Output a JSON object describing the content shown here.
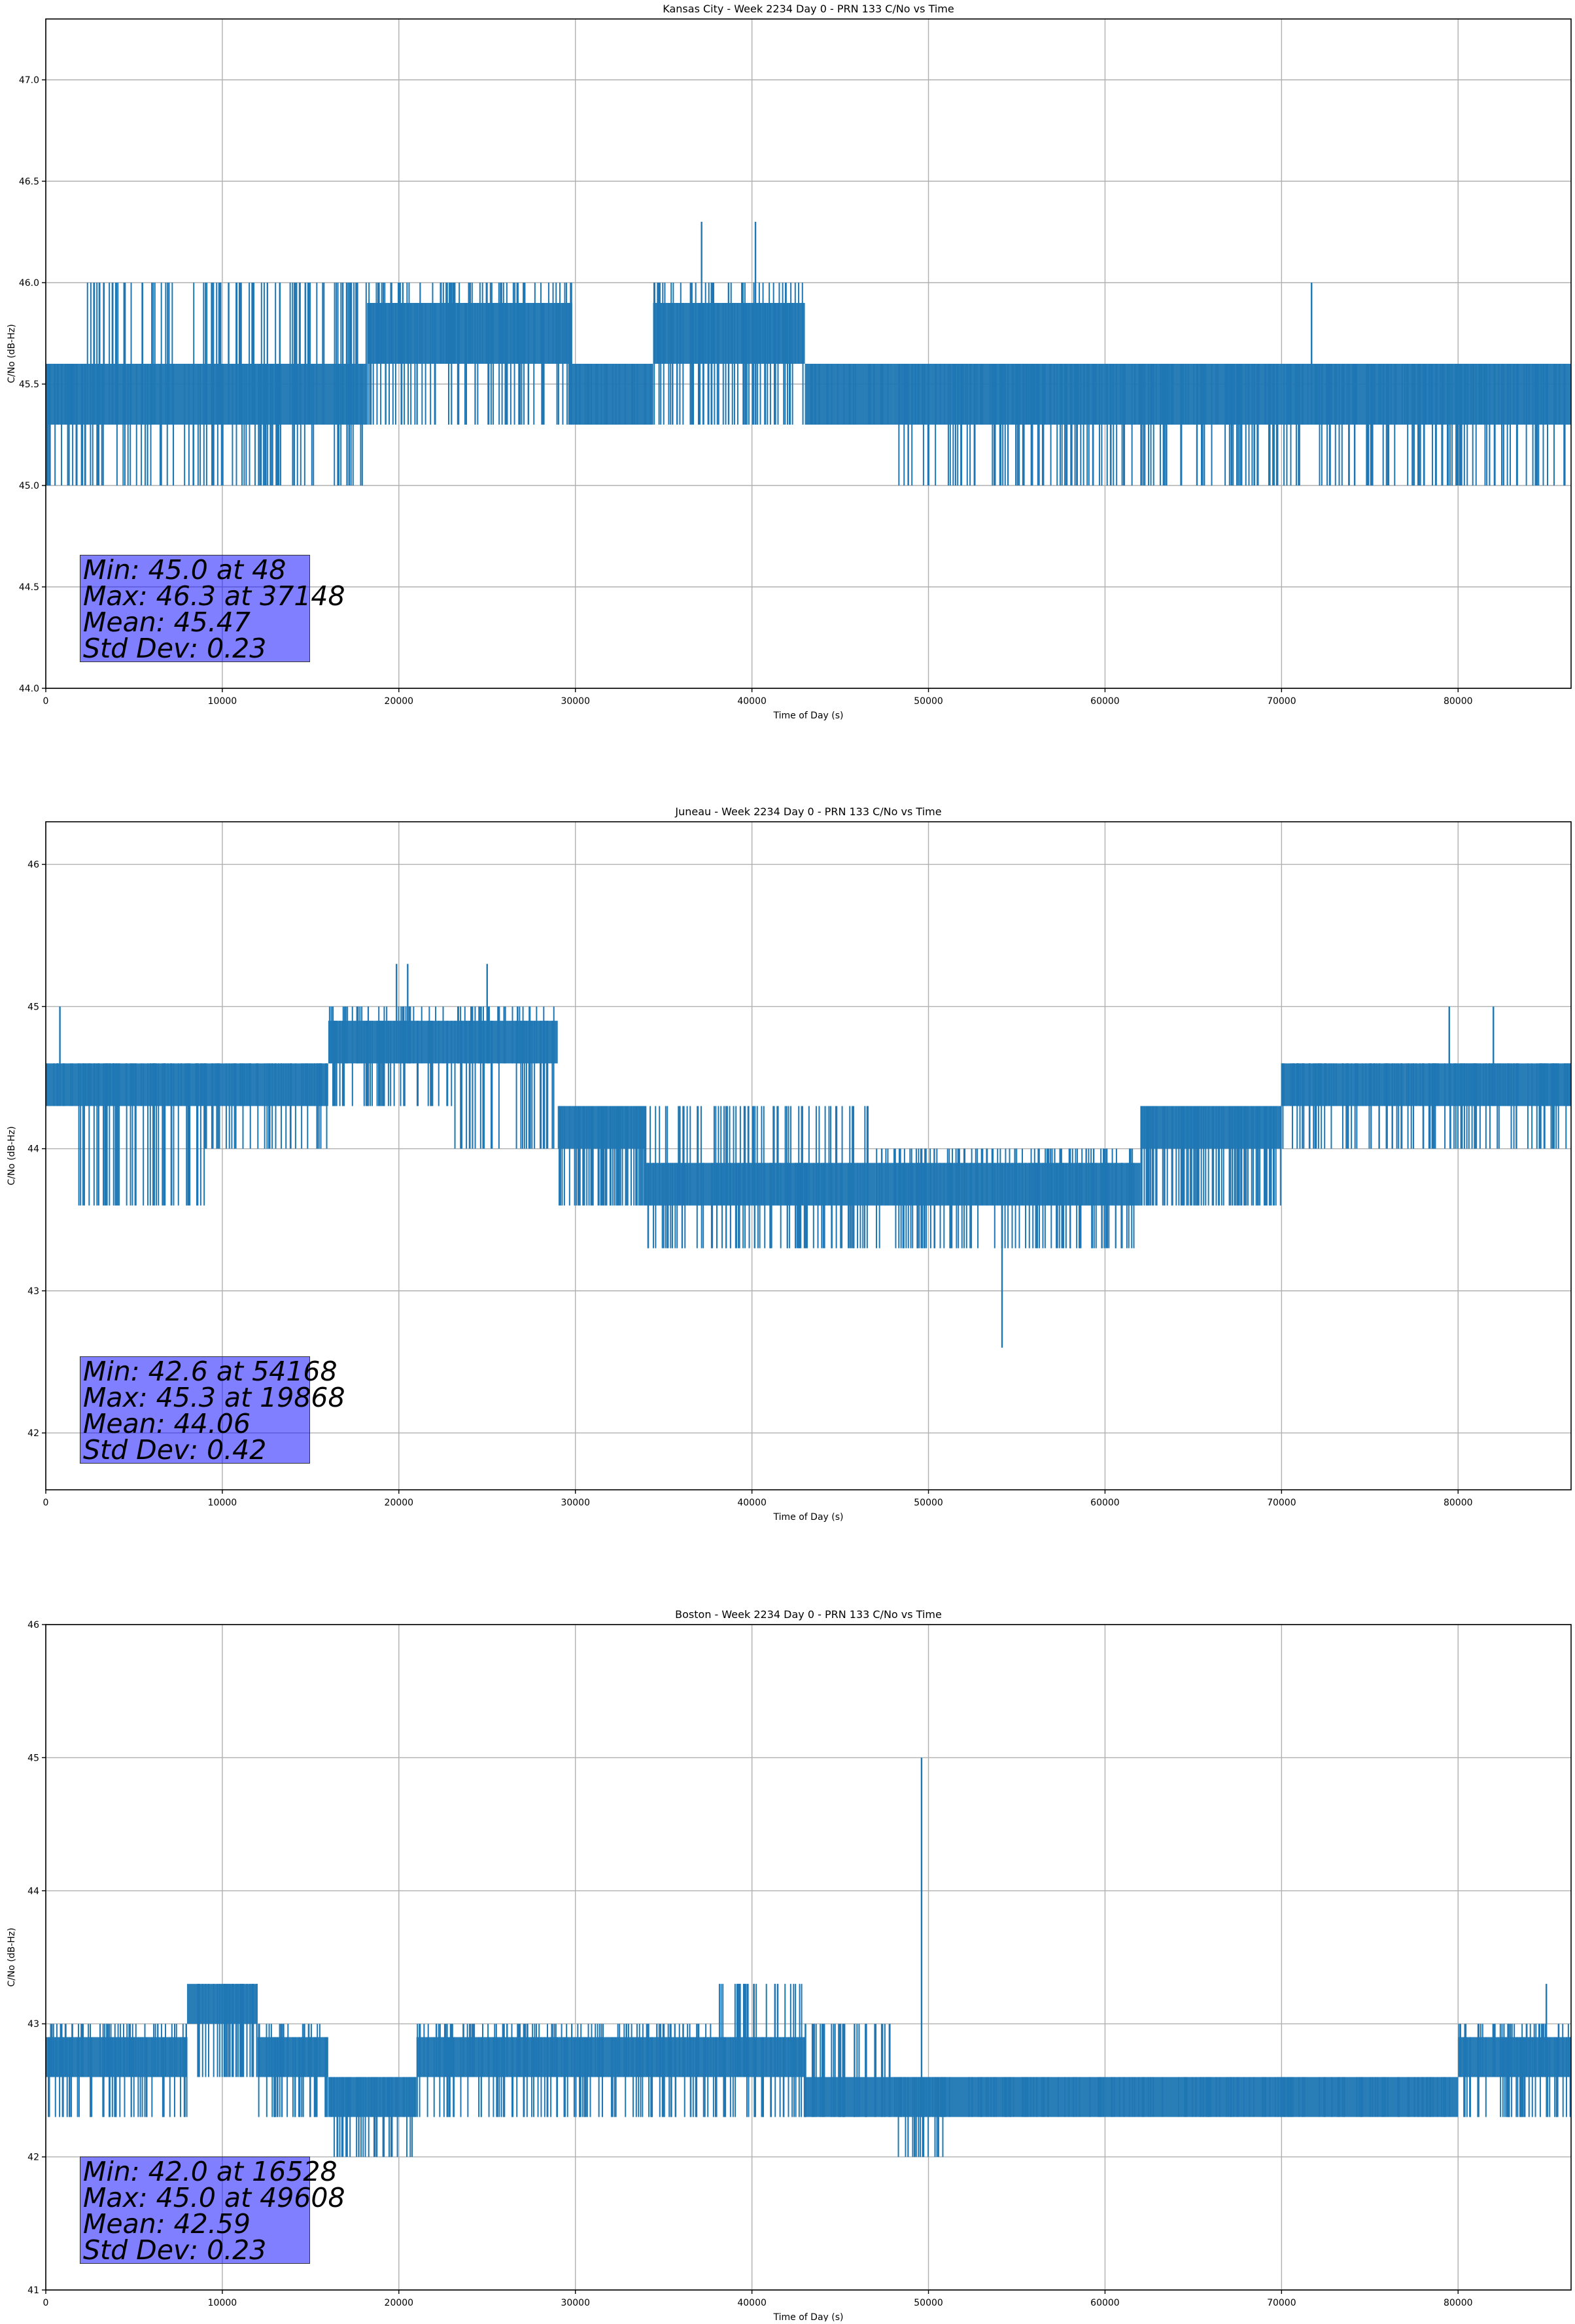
{
  "chart_data": [
    {
      "type": "line",
      "title": "Kansas City - Week 2234 Day 0 - PRN 133 C/No vs Time",
      "xlabel": "Time of Day (s)",
      "ylabel": "C/No (dB-Hz)",
      "xlim": [
        0,
        86400
      ],
      "ylim": [
        44.0,
        47.3
      ],
      "xticks": [
        0,
        10000,
        20000,
        30000,
        40000,
        50000,
        60000,
        70000,
        80000
      ],
      "yticks": [
        44.0,
        44.5,
        45.0,
        45.5,
        46.0,
        46.5,
        47.0
      ],
      "ytick_labels": [
        "44.0",
        "44.5",
        "45.0",
        "45.5",
        "46.0",
        "46.5",
        "47.0"
      ],
      "grid": true,
      "color": "#1f77b4",
      "band_segments": [
        {
          "x": [
            0,
            2000
          ],
          "base": 45.3,
          "lo": 45.0,
          "hi": 45.6
        },
        {
          "x": [
            2000,
            18200
          ],
          "base": 45.3,
          "lo": 45.0,
          "hi": 46.0
        },
        {
          "x": [
            18200,
            29800
          ],
          "base": 45.6,
          "lo": 45.3,
          "hi": 46.0
        },
        {
          "x": [
            29800,
            34400
          ],
          "base": 45.3,
          "lo": 45.3,
          "hi": 45.6
        },
        {
          "x": [
            34400,
            43000
          ],
          "base": 45.6,
          "lo": 45.3,
          "hi": 46.0
        },
        {
          "x": [
            43000,
            48000
          ],
          "base": 45.3,
          "lo": 45.3,
          "hi": 45.6
        },
        {
          "x": [
            48000,
            86400
          ],
          "base": 45.3,
          "lo": 45.0,
          "hi": 45.6
        }
      ],
      "spikes": [
        {
          "x": 48,
          "y": 45.0
        },
        {
          "x": 37148,
          "y": 46.3
        },
        {
          "x": 40200,
          "y": 46.3
        },
        {
          "x": 71700,
          "y": 46.0
        }
      ],
      "stats": [
        "Min: 45.0 at 48",
        "Max: 46.3 at 37148",
        "Mean: 45.47",
        "Std Dev: 0.23"
      ]
    },
    {
      "type": "line",
      "title": "Juneau - Week 2234 Day 0 - PRN 133 C/No vs Time",
      "xlabel": "Time of Day (s)",
      "ylabel": "C/No (dB-Hz)",
      "xlim": [
        0,
        86400
      ],
      "ylim": [
        41.6,
        46.3
      ],
      "xticks": [
        0,
        10000,
        20000,
        30000,
        40000,
        50000,
        60000,
        70000,
        80000
      ],
      "yticks": [
        42,
        43,
        44,
        45,
        46
      ],
      "ytick_labels": [
        "42",
        "43",
        "44",
        "45",
        "46"
      ],
      "grid": true,
      "color": "#1f77b4",
      "band_segments": [
        {
          "x": [
            0,
            1800
          ],
          "base": 44.3,
          "lo": 44.3,
          "hi": 44.6
        },
        {
          "x": [
            1800,
            9000
          ],
          "base": 44.3,
          "lo": 43.6,
          "hi": 44.6
        },
        {
          "x": [
            9000,
            16000
          ],
          "base": 44.3,
          "lo": 44.0,
          "hi": 44.6
        },
        {
          "x": [
            16000,
            23000
          ],
          "base": 44.6,
          "lo": 44.3,
          "hi": 45.0
        },
        {
          "x": [
            23000,
            29000
          ],
          "base": 44.6,
          "lo": 44.0,
          "hi": 45.0
        },
        {
          "x": [
            29000,
            34000
          ],
          "base": 44.0,
          "lo": 43.6,
          "hi": 44.3
        },
        {
          "x": [
            34000,
            47000
          ],
          "base": 43.6,
          "lo": 43.3,
          "hi": 44.3
        },
        {
          "x": [
            47000,
            62000
          ],
          "base": 43.6,
          "lo": 43.3,
          "hi": 44.0
        },
        {
          "x": [
            62000,
            70000
          ],
          "base": 44.0,
          "lo": 43.6,
          "hi": 44.3
        },
        {
          "x": [
            70000,
            77000
          ],
          "base": 44.3,
          "lo": 44.0,
          "hi": 44.6
        },
        {
          "x": [
            77000,
            86400
          ],
          "base": 44.3,
          "lo": 44.0,
          "hi": 44.6
        }
      ],
      "spikes": [
        {
          "x": 800,
          "y": 45.0
        },
        {
          "x": 19868,
          "y": 45.3
        },
        {
          "x": 20500,
          "y": 45.3
        },
        {
          "x": 25000,
          "y": 45.3
        },
        {
          "x": 54168,
          "y": 42.6
        },
        {
          "x": 79500,
          "y": 45.0
        },
        {
          "x": 82000,
          "y": 45.0
        }
      ],
      "stats": [
        "Min: 42.6 at 54168",
        "Max: 45.3 at 19868",
        "Mean: 44.06",
        "Std Dev: 0.42"
      ]
    },
    {
      "type": "line",
      "title": "Boston - Week 2234 Day 0 - PRN 133 C/No vs Time",
      "xlabel": "Time of Day (s)",
      "ylabel": "C/No (dB-Hz)",
      "xlim": [
        0,
        86400
      ],
      "ylim": [
        41.0,
        46.0
      ],
      "xticks": [
        0,
        10000,
        20000,
        30000,
        40000,
        50000,
        60000,
        70000,
        80000
      ],
      "yticks": [
        41,
        42,
        43,
        44,
        45,
        46
      ],
      "ytick_labels": [
        "41",
        "42",
        "43",
        "44",
        "45",
        "46"
      ],
      "grid": true,
      "color": "#1f77b4",
      "band_segments": [
        {
          "x": [
            0,
            8000
          ],
          "base": 42.6,
          "lo": 42.3,
          "hi": 43.0
        },
        {
          "x": [
            8000,
            12000
          ],
          "base": 43.0,
          "lo": 42.6,
          "hi": 43.3
        },
        {
          "x": [
            12000,
            16000
          ],
          "base": 42.6,
          "lo": 42.3,
          "hi": 43.0
        },
        {
          "x": [
            16000,
            21000
          ],
          "base": 42.3,
          "lo": 42.0,
          "hi": 42.6
        },
        {
          "x": [
            21000,
            30000
          ],
          "base": 42.6,
          "lo": 42.3,
          "hi": 43.0
        },
        {
          "x": [
            30000,
            38000
          ],
          "base": 42.6,
          "lo": 42.3,
          "hi": 43.0
        },
        {
          "x": [
            38000,
            43000
          ],
          "base": 42.6,
          "lo": 42.3,
          "hi": 43.3
        },
        {
          "x": [
            43000,
            48000
          ],
          "base": 42.3,
          "lo": 42.3,
          "hi": 43.0
        },
        {
          "x": [
            48000,
            51000
          ],
          "base": 42.3,
          "lo": 42.0,
          "hi": 42.6
        },
        {
          "x": [
            51000,
            80000
          ],
          "base": 42.3,
          "lo": 42.3,
          "hi": 42.6
        },
        {
          "x": [
            80000,
            86400
          ],
          "base": 42.6,
          "lo": 42.3,
          "hi": 43.0
        }
      ],
      "spikes": [
        {
          "x": 16528,
          "y": 42.0
        },
        {
          "x": 49608,
          "y": 45.0
        },
        {
          "x": 85000,
          "y": 43.3
        }
      ],
      "stats": [
        "Min: 42.0 at 16528",
        "Max: 45.0 at 49608",
        "Mean: 42.59",
        "Std Dev: 0.23"
      ]
    }
  ]
}
